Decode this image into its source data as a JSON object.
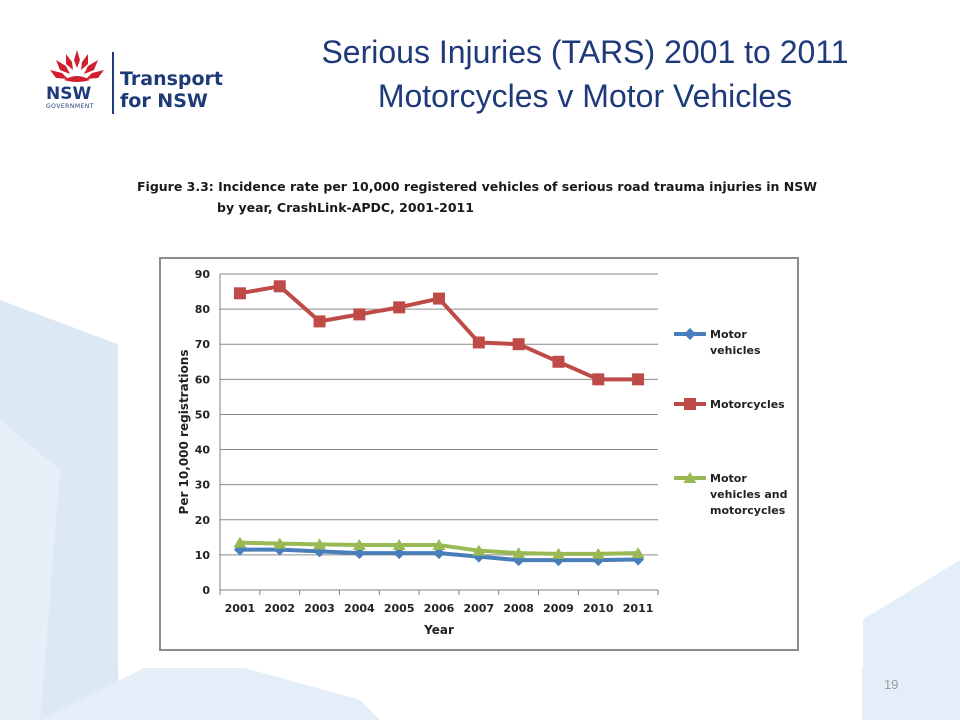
{
  "header": {
    "logo": {
      "nsw_text": "NSW",
      "government_text": "GOVERNMENT",
      "brand_line1": "Transport",
      "brand_line2": "for NSW"
    },
    "title_line1": "Serious Injuries (TARS) 2001 to 2011",
    "title_line2": "Motorcycles v Motor Vehicles"
  },
  "figure": {
    "caption_line1": "Figure 3.3: Incidence rate per 10,000 registered vehicles of serious road trauma injuries in NSW",
    "caption_line2": "by year, CrashLink-APDC, 2001-2011"
  },
  "chart_data": {
    "type": "line",
    "title": "",
    "xlabel": "Year",
    "ylabel": "Per 10,000 registrations",
    "categories": [
      "2001",
      "2002",
      "2003",
      "2004",
      "2005",
      "2006",
      "2007",
      "2008",
      "2009",
      "2010",
      "2011"
    ],
    "ylim": [
      0,
      90
    ],
    "yticks": [
      0,
      10,
      20,
      30,
      40,
      50,
      60,
      70,
      80,
      90
    ],
    "grid": true,
    "legend_position": "right",
    "series": [
      {
        "name": "Motor vehicles",
        "legend_lines": [
          "Motor",
          "vehicles"
        ],
        "color": "#4a7ebb",
        "marker": "diamond",
        "values": [
          11.5,
          11.5,
          11,
          10.5,
          10.5,
          10.5,
          9.5,
          8.5,
          8.5,
          8.5,
          8.7
        ]
      },
      {
        "name": "Motorcycles",
        "legend_lines": [
          "Motorcycles"
        ],
        "color": "#be4b48",
        "marker": "square",
        "values": [
          84.5,
          86.5,
          76.5,
          78.5,
          80.5,
          83,
          70.5,
          70,
          65,
          60,
          60
        ]
      },
      {
        "name": "Motor vehicles and motorcycles",
        "legend_lines": [
          "Motor",
          "vehicles and",
          "motorcycles"
        ],
        "color": "#98b954",
        "marker": "triangle",
        "values": [
          13.5,
          13.2,
          13,
          12.8,
          12.8,
          12.8,
          11.2,
          10.5,
          10.3,
          10.3,
          10.5
        ]
      }
    ]
  },
  "footer": {
    "page_number": "19"
  },
  "colors": {
    "title": "#1f3a7a",
    "waratah_red": "#d0202e",
    "bg_shape": "#dce9f5"
  }
}
